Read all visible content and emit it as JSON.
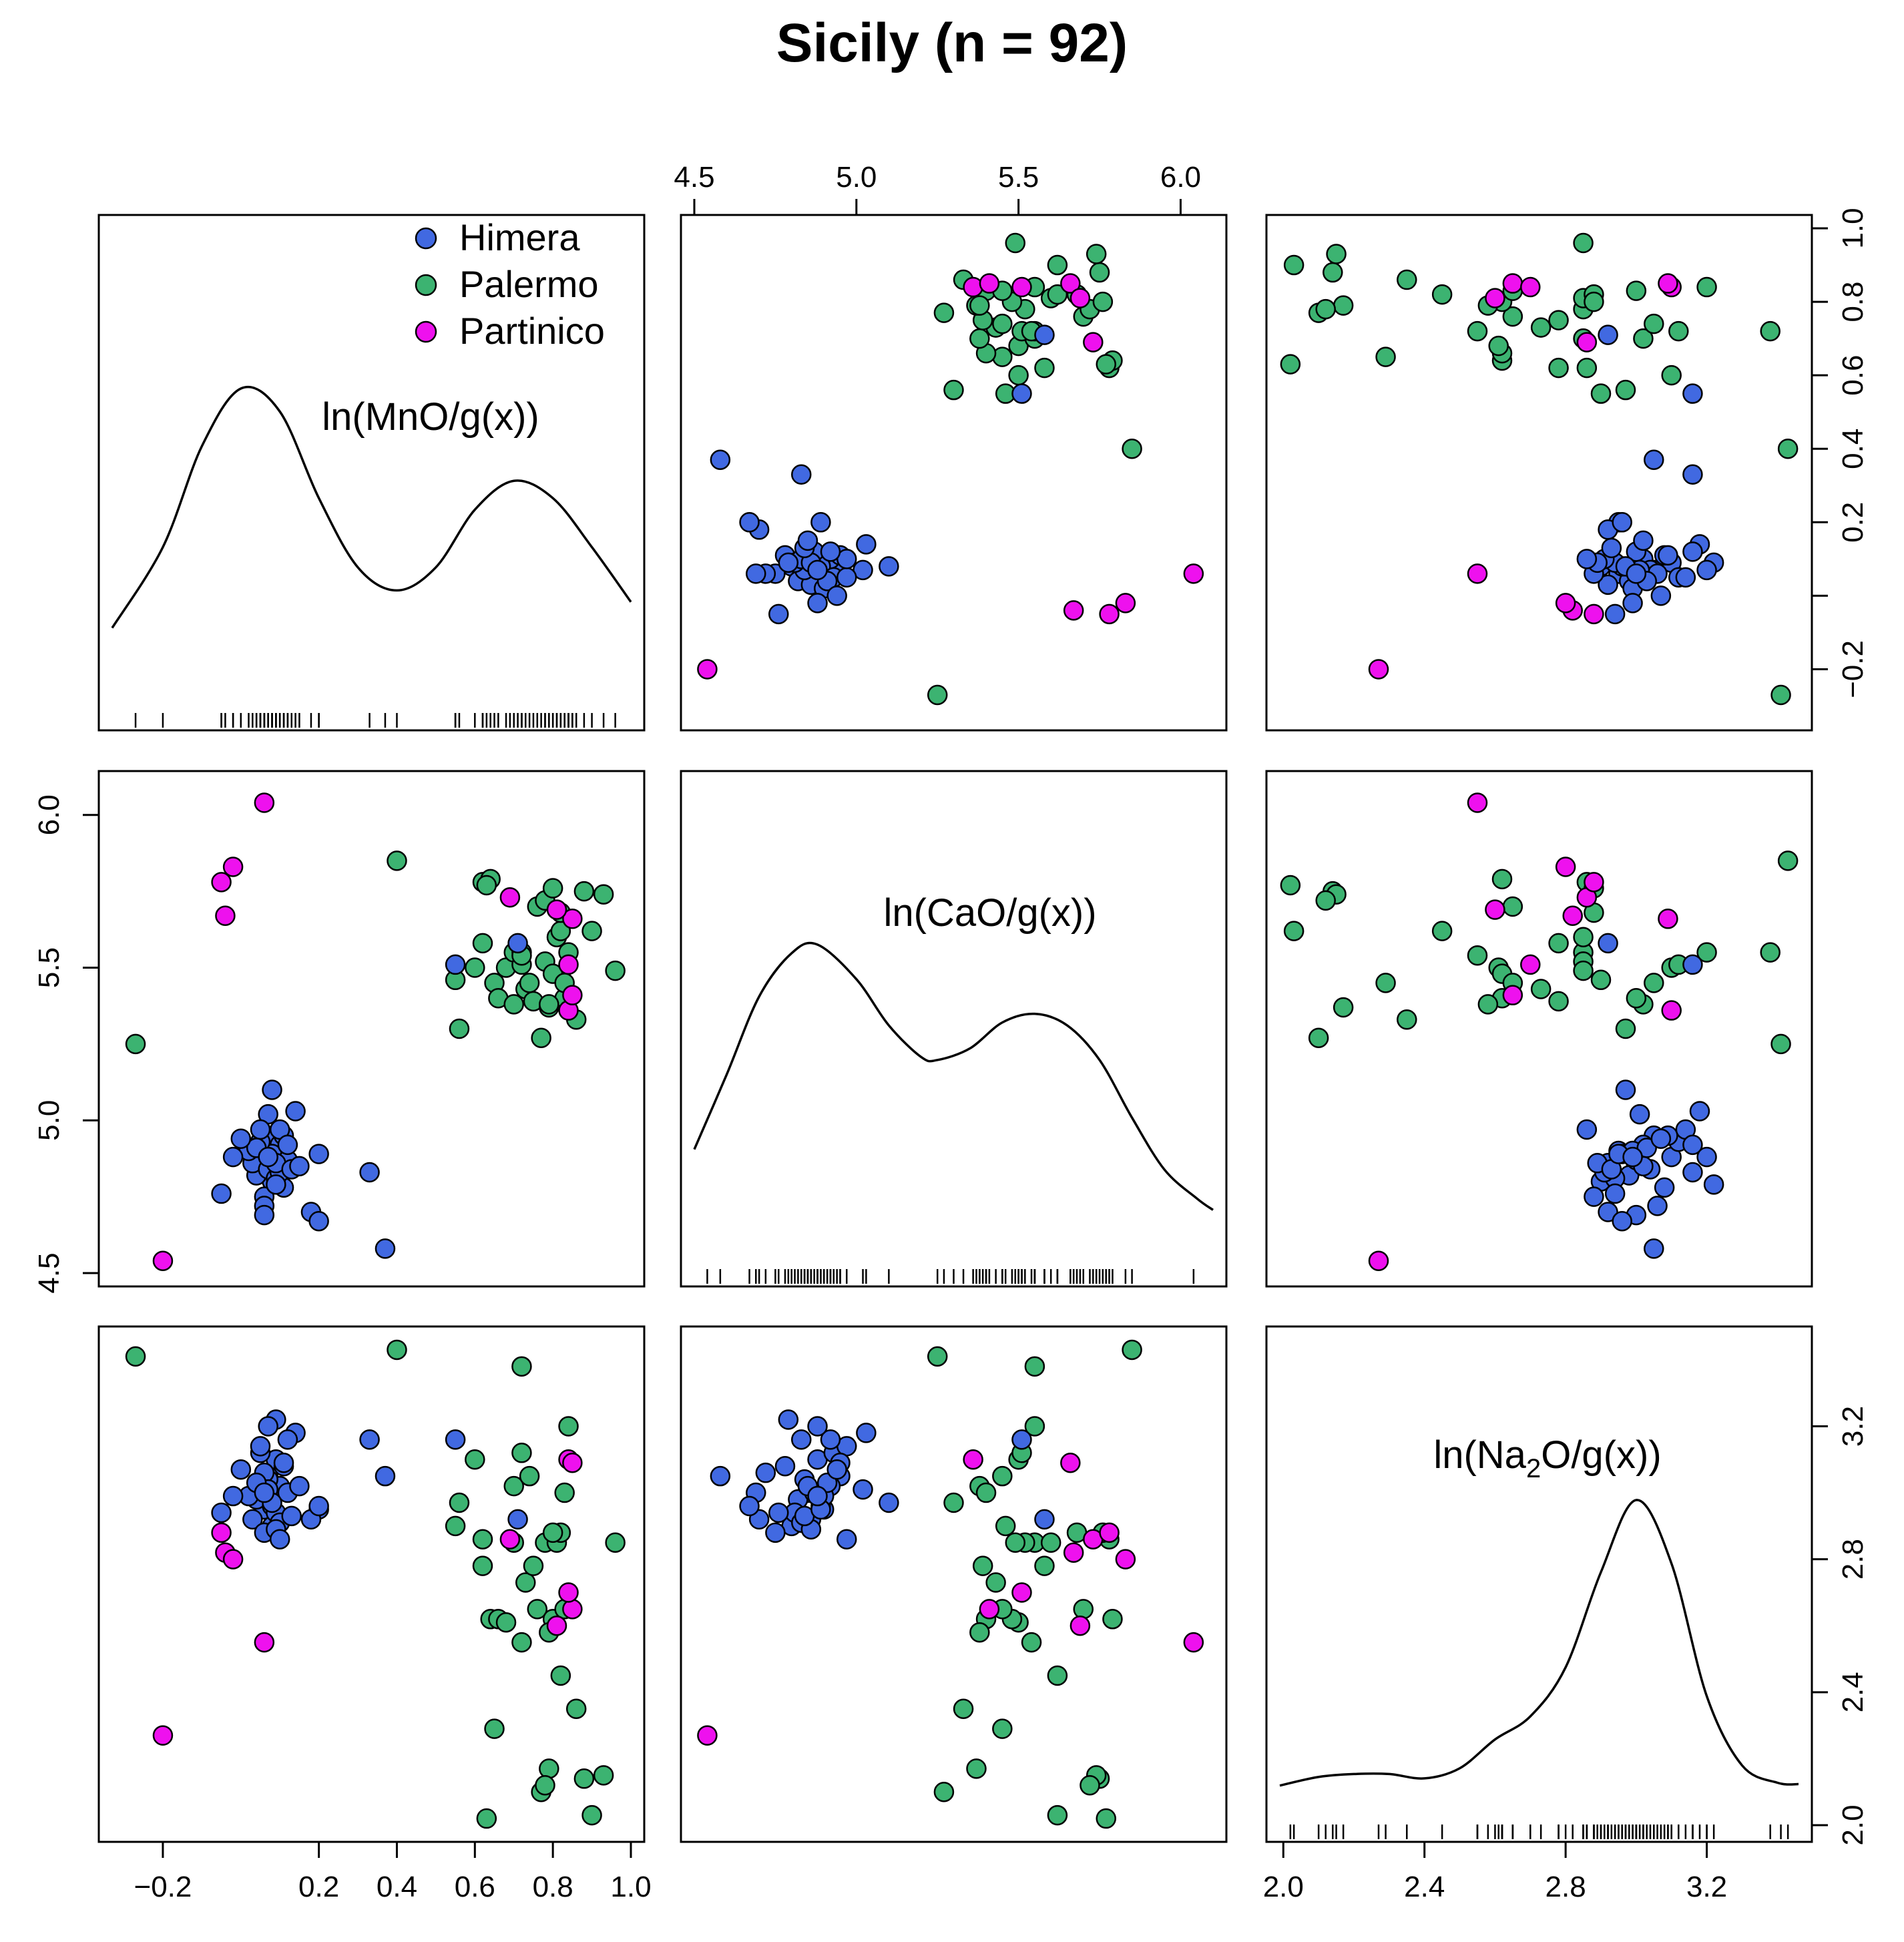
{
  "title": "Sicily (n = 92)",
  "chart_data": {
    "type": "scatter",
    "subtype": "scatterplot-matrix",
    "title": "Sicily (n = 92)",
    "variables": [
      "ln(MnO/g(x))",
      "ln(CaO/g(x))",
      "ln(Na2O/g(x))"
    ],
    "variable_labels": [
      {
        "main": "ln(MnO/g(x))",
        "sub": "",
        "rest": ""
      },
      {
        "main": "ln(CaO/g(x))",
        "sub": "",
        "rest": ""
      },
      {
        "main": "ln(Na",
        "sub": "2",
        "rest": "O/g(x))"
      }
    ],
    "axis_ranges": {
      "mn": [
        -0.33,
        1.0
      ],
      "ca": [
        4.5,
        6.1
      ],
      "na": [
        1.99,
        3.46
      ]
    },
    "ticks": {
      "mn_bottom": [
        -0.2,
        0.2,
        0.4,
        0.6,
        0.8,
        1.0
      ],
      "mn_right": [
        -0.2,
        0.0,
        0.2,
        0.4,
        0.6,
        0.8,
        1.0
      ],
      "ca_top": [
        4.5,
        5.0,
        5.5,
        6.0
      ],
      "ca_left": [
        4.5,
        5.0,
        5.5,
        6.0
      ],
      "na_bottom": [
        2.0,
        2.4,
        2.8,
        3.2
      ],
      "na_right": [
        2.0,
        2.4,
        2.8,
        3.2
      ]
    },
    "tick_labels": {
      "mn_bottom": [
        "-0.2",
        "0.2",
        "0.4",
        "0.6",
        "0.8",
        "1.0"
      ],
      "mn_right": [
        "-0.2",
        "",
        "0.2",
        "0.4",
        "0.6",
        "0.8",
        "1.0"
      ],
      "ca_top": [
        "4.5",
        "5.0",
        "5.5",
        "6.0"
      ],
      "ca_left": [
        "4.5",
        "5.0",
        "5.5",
        "6.0"
      ],
      "na_bottom": [
        "2.0",
        "2.4",
        "2.8",
        "3.2"
      ],
      "na_right": [
        "2.0",
        "2.4",
        "2.8",
        "3.2"
      ]
    },
    "legend": {
      "placement": "top-left panel, top-right",
      "entries": [
        {
          "name": "Himera",
          "color": "#4169E1"
        },
        {
          "name": "Palermo",
          "color": "#3CB371"
        },
        {
          "name": "Partinico",
          "color": "#EE11EE"
        }
      ]
    },
    "colors": {
      "Himera": "#4169E1",
      "Palermo": "#3CB371",
      "Partinico": "#EE11EE"
    },
    "density": {
      "mn": [
        [
          -0.33,
          0.17
        ],
        [
          -0.2,
          0.45
        ],
        [
          -0.1,
          0.8
        ],
        [
          0.0,
          1.0
        ],
        [
          0.1,
          0.92
        ],
        [
          0.2,
          0.62
        ],
        [
          0.3,
          0.38
        ],
        [
          0.4,
          0.3
        ],
        [
          0.5,
          0.38
        ],
        [
          0.6,
          0.58
        ],
        [
          0.7,
          0.68
        ],
        [
          0.8,
          0.62
        ],
        [
          0.9,
          0.45
        ],
        [
          1.0,
          0.26
        ]
      ],
      "ca": [
        [
          4.5,
          0.29
        ],
        [
          4.6,
          0.55
        ],
        [
          4.7,
          0.82
        ],
        [
          4.8,
          0.97
        ],
        [
          4.88,
          1.0
        ],
        [
          5.0,
          0.88
        ],
        [
          5.1,
          0.72
        ],
        [
          5.2,
          0.61
        ],
        [
          5.25,
          0.6
        ],
        [
          5.35,
          0.64
        ],
        [
          5.45,
          0.73
        ],
        [
          5.55,
          0.76
        ],
        [
          5.65,
          0.72
        ],
        [
          5.75,
          0.6
        ],
        [
          5.85,
          0.4
        ],
        [
          5.95,
          0.22
        ],
        [
          6.05,
          0.12
        ],
        [
          6.1,
          0.08
        ]
      ],
      "na": [
        [
          1.99,
          0.01
        ],
        [
          2.1,
          0.04
        ],
        [
          2.2,
          0.05
        ],
        [
          2.3,
          0.05
        ],
        [
          2.4,
          0.035
        ],
        [
          2.5,
          0.07
        ],
        [
          2.6,
          0.17
        ],
        [
          2.7,
          0.25
        ],
        [
          2.8,
          0.42
        ],
        [
          2.9,
          0.75
        ],
        [
          3.0,
          1.0
        ],
        [
          3.1,
          0.78
        ],
        [
          3.2,
          0.32
        ],
        [
          3.3,
          0.08
        ],
        [
          3.4,
          0.02
        ],
        [
          3.46,
          0.015
        ]
      ]
    },
    "points": {
      "Himera": [
        [
          0.05,
          4.85,
          3.0
        ],
        [
          0.06,
          4.9,
          2.95
        ],
        [
          0.07,
          4.95,
          3.05
        ],
        [
          0.08,
          4.8,
          2.9
        ],
        [
          0.09,
          4.88,
          3.1
        ],
        [
          0.04,
          4.82,
          2.98
        ],
        [
          0.1,
          4.92,
          3.02
        ],
        [
          0.03,
          4.86,
          2.92
        ],
        [
          0.11,
          4.78,
          3.08
        ],
        [
          0.06,
          4.75,
          2.88
        ],
        [
          0.07,
          4.84,
          3.04
        ],
        [
          0.08,
          4.89,
          2.96
        ],
        [
          0.05,
          4.93,
          3.12
        ],
        [
          0.09,
          4.81,
          2.94
        ],
        [
          0.12,
          4.87,
          3.0
        ],
        [
          0.02,
          4.9,
          2.99
        ],
        [
          0.06,
          4.72,
          3.06
        ],
        [
          0.1,
          4.83,
          2.91
        ],
        [
          0.07,
          5.02,
          3.01
        ],
        [
          0.08,
          5.1,
          2.97
        ],
        [
          0.05,
          4.97,
          3.14
        ],
        [
          0.04,
          4.91,
          3.03
        ],
        [
          0.09,
          4.86,
          2.89
        ],
        [
          0.11,
          4.95,
          3.09
        ],
        [
          0.13,
          4.84,
          2.93
        ],
        [
          0.06,
          4.69,
          3.0
        ],
        [
          0.15,
          4.85,
          3.02
        ],
        [
          0.2,
          4.89,
          2.95
        ],
        [
          0.18,
          4.7,
          2.92
        ],
        [
          0.2,
          4.67,
          2.96
        ],
        [
          0.14,
          5.03,
          3.18
        ],
        [
          0.1,
          4.97,
          2.86
        ],
        [
          -0.02,
          4.88,
          2.99
        ],
        [
          -0.05,
          4.76,
          2.94
        ],
        [
          0.0,
          4.94,
          3.07
        ],
        [
          0.09,
          4.79,
          3.22
        ],
        [
          0.12,
          4.92,
          3.16
        ],
        [
          0.07,
          4.88,
          3.2
        ],
        [
          0.33,
          4.83,
          3.16
        ],
        [
          0.37,
          4.58,
          3.05
        ],
        [
          0.55,
          5.51,
          3.16
        ],
        [
          0.71,
          5.58,
          2.92
        ]
      ],
      "Palermo": [
        [
          0.56,
          5.3,
          2.97
        ],
        [
          0.6,
          5.5,
          3.1
        ],
        [
          0.62,
          5.78,
          2.86
        ],
        [
          0.64,
          5.79,
          2.62
        ],
        [
          0.65,
          5.45,
          2.29
        ],
        [
          0.66,
          5.4,
          2.62
        ],
        [
          0.68,
          5.5,
          2.61
        ],
        [
          0.7,
          5.55,
          2.85
        ],
        [
          0.7,
          5.38,
          3.02
        ],
        [
          0.72,
          5.55,
          3.38
        ],
        [
          0.73,
          5.43,
          2.73
        ],
        [
          0.74,
          5.45,
          3.05
        ],
        [
          0.75,
          5.39,
          2.78
        ],
        [
          0.76,
          5.7,
          2.65
        ],
        [
          0.77,
          5.27,
          2.1
        ],
        [
          0.78,
          5.52,
          2.85
        ],
        [
          0.79,
          5.37,
          2.17
        ],
        [
          0.8,
          5.48,
          2.62
        ],
        [
          0.81,
          5.6,
          2.85
        ],
        [
          0.82,
          5.62,
          2.45
        ],
        [
          0.83,
          5.4,
          3.0
        ],
        [
          0.84,
          5.55,
          3.2
        ],
        [
          0.86,
          5.33,
          2.35
        ],
        [
          0.88,
          5.75,
          2.14
        ],
        [
          0.9,
          5.62,
          2.03
        ],
        [
          0.93,
          5.74,
          2.15
        ],
        [
          0.96,
          5.49,
          2.85
        ],
        [
          0.82,
          5.68,
          2.88
        ],
        [
          0.78,
          5.72,
          2.12
        ],
        [
          0.79,
          5.38,
          2.58
        ],
        [
          0.83,
          5.45,
          2.65
        ],
        [
          0.55,
          5.46,
          2.9
        ],
        [
          0.62,
          5.58,
          2.78
        ],
        [
          0.72,
          5.51,
          3.12
        ],
        [
          0.8,
          5.76,
          2.88
        ],
        [
          0.4,
          5.85,
          3.43
        ],
        [
          -0.27,
          5.25,
          3.41
        ],
        [
          0.72,
          5.54,
          2.55
        ],
        [
          0.63,
          5.77,
          2.02
        ]
      ],
      "Partinico": [
        [
          0.69,
          5.73,
          2.86
        ],
        [
          0.84,
          5.36,
          3.1
        ],
        [
          0.85,
          5.66,
          3.09
        ],
        [
          0.81,
          5.69,
          2.6
        ],
        [
          0.85,
          5.41,
          2.65
        ],
        [
          -0.05,
          5.78,
          2.88
        ],
        [
          -0.04,
          5.67,
          2.82
        ],
        [
          -0.02,
          5.83,
          2.8
        ],
        [
          0.06,
          6.04,
          2.55
        ],
        [
          -0.2,
          4.54,
          2.27
        ],
        [
          0.84,
          5.51,
          2.7
        ]
      ]
    }
  }
}
